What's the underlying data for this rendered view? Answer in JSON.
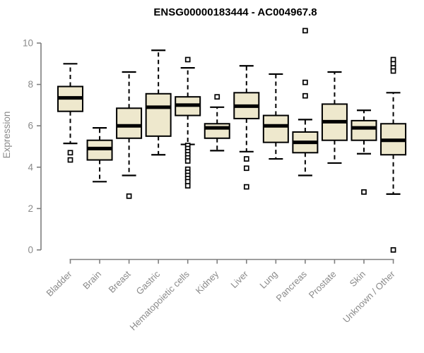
{
  "chart_data": {
    "type": "boxplot",
    "title": "ENSG00000183444 - AC004967.8",
    "ylabel": "Expression",
    "xlabel": "",
    "ylim": [
      0,
      10
    ],
    "yticks": [
      0,
      2,
      4,
      6,
      8,
      10
    ],
    "grid": false,
    "legend": "none",
    "categories": [
      "Bladder",
      "Brain",
      "Breast",
      "Gastric",
      "Hematopoietic cells",
      "Kidney",
      "Liver",
      "Lung",
      "Pancreas",
      "Prostate",
      "Skin",
      "Unknown / Other"
    ],
    "series": [
      {
        "category": "Bladder",
        "whisker_low": 5.15,
        "q1": 6.7,
        "median": 7.35,
        "q3": 7.9,
        "whisker_high": 9.0,
        "outliers": [
          4.7,
          4.35
        ]
      },
      {
        "category": "Brain",
        "whisker_low": 3.3,
        "q1": 4.35,
        "median": 4.9,
        "q3": 5.3,
        "whisker_high": 5.9,
        "outliers": []
      },
      {
        "category": "Breast",
        "whisker_low": 3.6,
        "q1": 5.4,
        "median": 6.0,
        "q3": 6.85,
        "whisker_high": 8.6,
        "outliers": [
          2.6
        ]
      },
      {
        "category": "Gastric",
        "whisker_low": 4.6,
        "q1": 5.5,
        "median": 6.9,
        "q3": 7.55,
        "whisker_high": 9.65,
        "outliers": []
      },
      {
        "category": "Hematopoietic cells",
        "whisker_low": 5.1,
        "q1": 6.5,
        "median": 7.0,
        "q3": 7.4,
        "whisker_high": 8.8,
        "outliers": [
          9.2,
          5.05,
          4.9,
          4.75,
          4.6,
          4.45,
          4.3,
          3.9,
          3.75,
          3.6,
          3.45,
          3.3,
          3.1
        ]
      },
      {
        "category": "Kidney",
        "whisker_low": 4.8,
        "q1": 5.4,
        "median": 5.9,
        "q3": 6.1,
        "whisker_high": 6.9,
        "outliers": [
          7.4
        ]
      },
      {
        "category": "Liver",
        "whisker_low": 4.75,
        "q1": 6.35,
        "median": 6.95,
        "q3": 7.6,
        "whisker_high": 8.9,
        "outliers": [
          4.4,
          3.95,
          3.05
        ]
      },
      {
        "category": "Lung",
        "whisker_low": 4.4,
        "q1": 5.2,
        "median": 6.0,
        "q3": 6.5,
        "whisker_high": 8.5,
        "outliers": []
      },
      {
        "category": "Pancreas",
        "whisker_low": 3.6,
        "q1": 4.7,
        "median": 5.2,
        "q3": 5.7,
        "whisker_high": 6.3,
        "outliers": [
          10.6,
          8.1,
          7.45
        ]
      },
      {
        "category": "Prostate",
        "whisker_low": 4.2,
        "q1": 5.3,
        "median": 6.2,
        "q3": 7.05,
        "whisker_high": 8.6,
        "outliers": []
      },
      {
        "category": "Skin",
        "whisker_low": 4.65,
        "q1": 5.3,
        "median": 5.9,
        "q3": 6.25,
        "whisker_high": 6.75,
        "outliers": [
          2.8
        ]
      },
      {
        "category": "Unknown / Other",
        "whisker_low": 2.7,
        "q1": 4.6,
        "median": 5.3,
        "q3": 6.1,
        "whisker_high": 7.6,
        "outliers": [
          9.2,
          9.0,
          8.8,
          8.65,
          0.0
        ]
      }
    ],
    "colors": {
      "box_fill": "#EEE8CD",
      "box_stroke": "#000000",
      "median": "#000000",
      "whisker": "#000000",
      "outlier_stroke": "#000000",
      "axis_line": "#7f7f7f",
      "axis_text": "#8a8a8a",
      "title_text": "#000000",
      "background": "#FFFFFF"
    }
  }
}
